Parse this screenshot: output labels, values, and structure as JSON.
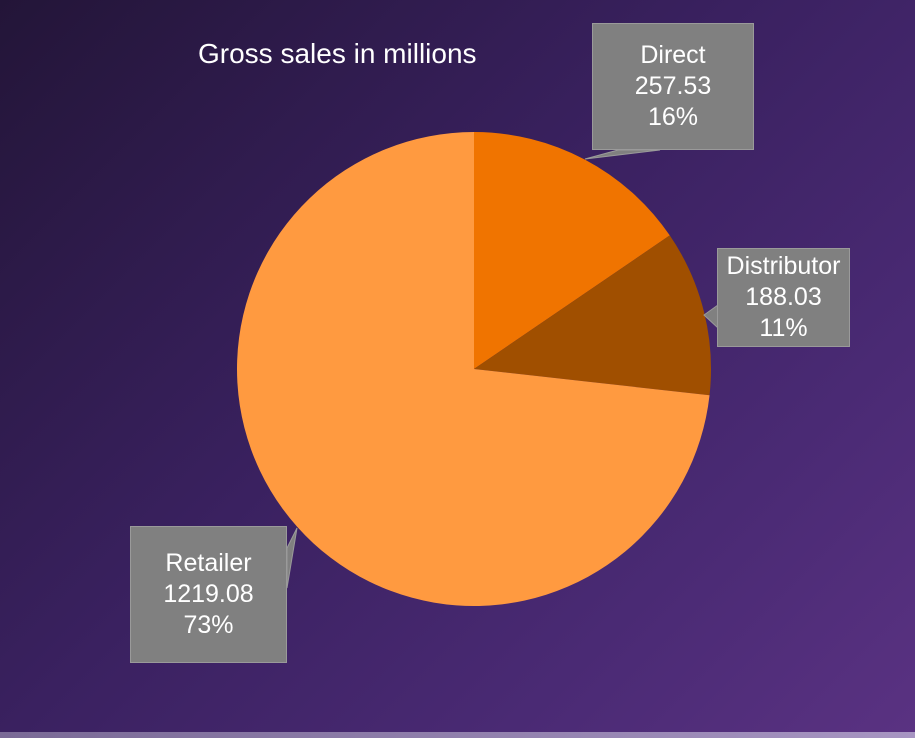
{
  "chart_data": {
    "type": "pie",
    "title": "Gross sales in millions",
    "slices": [
      {
        "label": "Direct",
        "value": 257.53,
        "value_label": "257.53",
        "percent_label": "16%",
        "color": "#f07400"
      },
      {
        "label": "Distributor",
        "value": 188.03,
        "value_label": "188.03",
        "percent_label": "11%",
        "color": "#a04f00"
      },
      {
        "label": "Retailer",
        "value": 1219.08,
        "value_label": "1219.08",
        "percent_label": "73%",
        "color": "#ff9a40"
      }
    ],
    "label_style": "callout",
    "legend": "none"
  },
  "colors": {
    "callout_bg": "#808080",
    "text": "#ffffff",
    "background": "#3a2160"
  }
}
